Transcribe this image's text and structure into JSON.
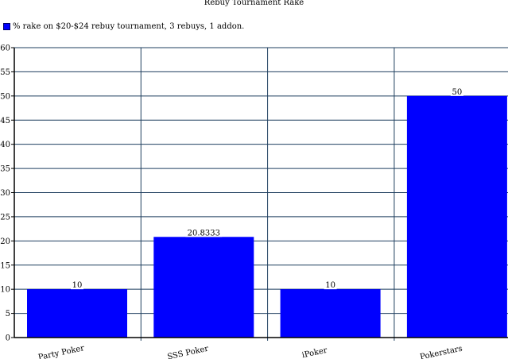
{
  "chart_data": {
    "type": "bar",
    "title": "Rebuy Tournament Rake",
    "legend": "% rake on $20-$24 rebuy tournament, 3 rebuys, 1 addon.",
    "legend_position": "top-left",
    "categories": [
      "Party Poker",
      "SSS Poker",
      "iPoker",
      "Pokerstars"
    ],
    "series": [
      {
        "name": "% rake on $20-$24 rebuy tournament, 3 rebuys, 1 addon.",
        "values": [
          10,
          20.8333,
          10,
          50
        ]
      }
    ],
    "value_labels": [
      "10",
      "20.8333",
      "10",
      "50"
    ],
    "ylim": [
      0,
      60
    ],
    "yticks": [
      0,
      5,
      10,
      15,
      20,
      25,
      30,
      35,
      40,
      45,
      50,
      55,
      60
    ],
    "xlabel": "",
    "ylabel": "",
    "grid": true,
    "colors": {
      "bar": "#0000ff",
      "grid": "#1f3f5f"
    }
  }
}
